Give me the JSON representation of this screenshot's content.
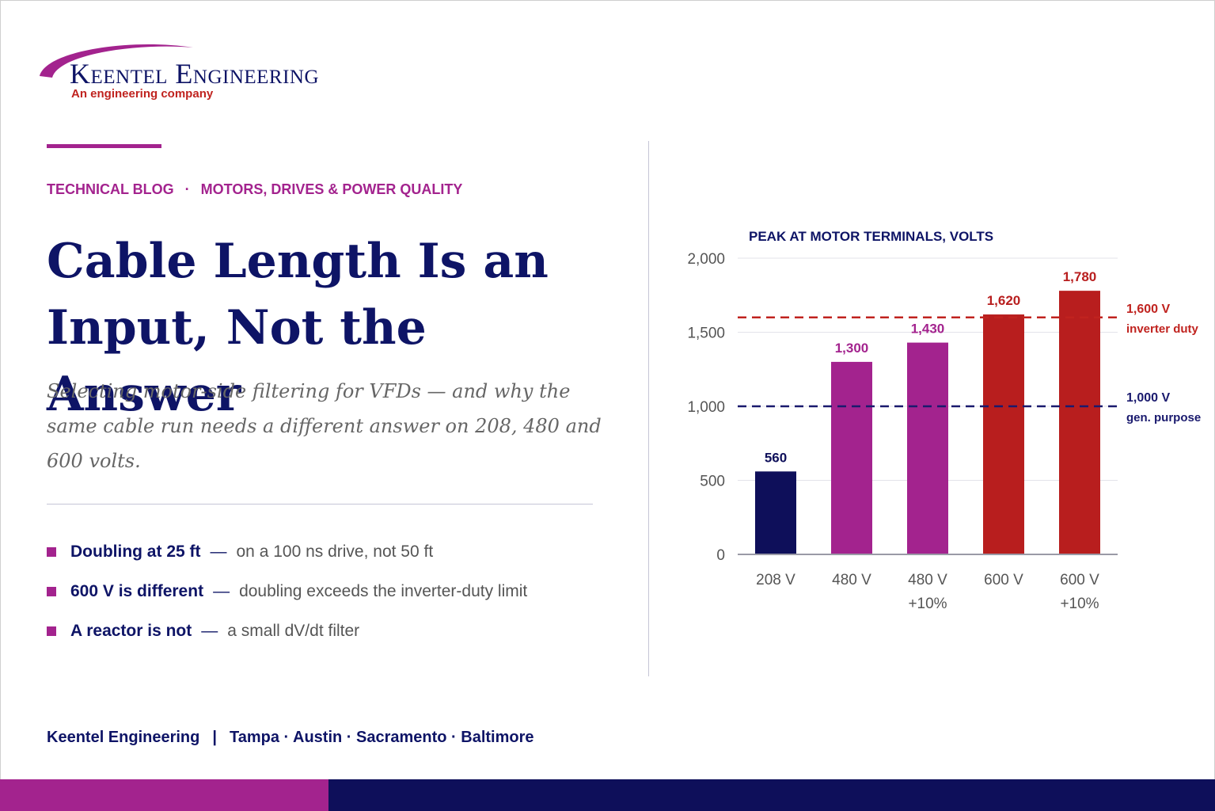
{
  "brand": {
    "name": "Keentel Engineering",
    "tagline": "An engineering company",
    "colors": {
      "navy": "#0e1466",
      "magenta": "#a3238e",
      "red": "#c0231f"
    }
  },
  "kicker": {
    "category": "TECHNICAL BLOG",
    "separator": "·",
    "topic": "MOTORS, DRIVES & POWER QUALITY"
  },
  "headline": {
    "line1": "Cable Length Is an",
    "line2": "Input, Not the Answer"
  },
  "subtitle": "Selecting motor-side filtering for VFDs — and why the same cable run needs a different answer on 208, 480 and 600 volts.",
  "bullets": [
    {
      "lead": "Doubling at 25 ft",
      "sep": "—",
      "rest": "on a 100 ns drive, not 50 ft"
    },
    {
      "lead": "600 V is different",
      "sep": "—",
      "rest": "doubling exceeds the inverter-duty limit"
    },
    {
      "lead": "A reactor is not",
      "sep": "—",
      "rest": "a small dV/dt filter"
    }
  ],
  "footer": {
    "company": "Keentel Engineering",
    "pipe": "|",
    "locations": "Tampa · Austin · Sacramento · Baltimore"
  },
  "chart_data": {
    "type": "bar",
    "title": "PEAK AT MOTOR TERMINALS, VOLTS",
    "categories": [
      {
        "line1": "208 V",
        "line2": ""
      },
      {
        "line1": "480 V",
        "line2": ""
      },
      {
        "line1": "480 V",
        "line2": "+10%"
      },
      {
        "line1": "600 V",
        "line2": ""
      },
      {
        "line1": "600 V",
        "line2": "+10%"
      }
    ],
    "values": [
      560,
      1300,
      1430,
      1620,
      1780
    ],
    "value_labels": [
      "560",
      "1,300",
      "1,430",
      "1,620",
      "1,780"
    ],
    "bar_colors": [
      "#0e0f5a",
      "#a3238e",
      "#a3238e",
      "#b81e1e",
      "#b81e1e"
    ],
    "ylim": [
      0,
      2000
    ],
    "yticks": [
      {
        "value": 0,
        "label": "0"
      },
      {
        "value": 500,
        "label": "500"
      },
      {
        "value": 1000,
        "label": "1,000"
      },
      {
        "value": 1500,
        "label": "1,500"
      },
      {
        "value": 2000,
        "label": "2,000"
      }
    ],
    "grid": true,
    "reference_lines": [
      {
        "value": 1600,
        "label": "1,600 V",
        "sublabel": "inverter duty",
        "color": "#c0231f"
      },
      {
        "value": 1000,
        "label": "1,000 V",
        "sublabel": "gen. purpose",
        "color": "#1a1a6e"
      }
    ]
  }
}
